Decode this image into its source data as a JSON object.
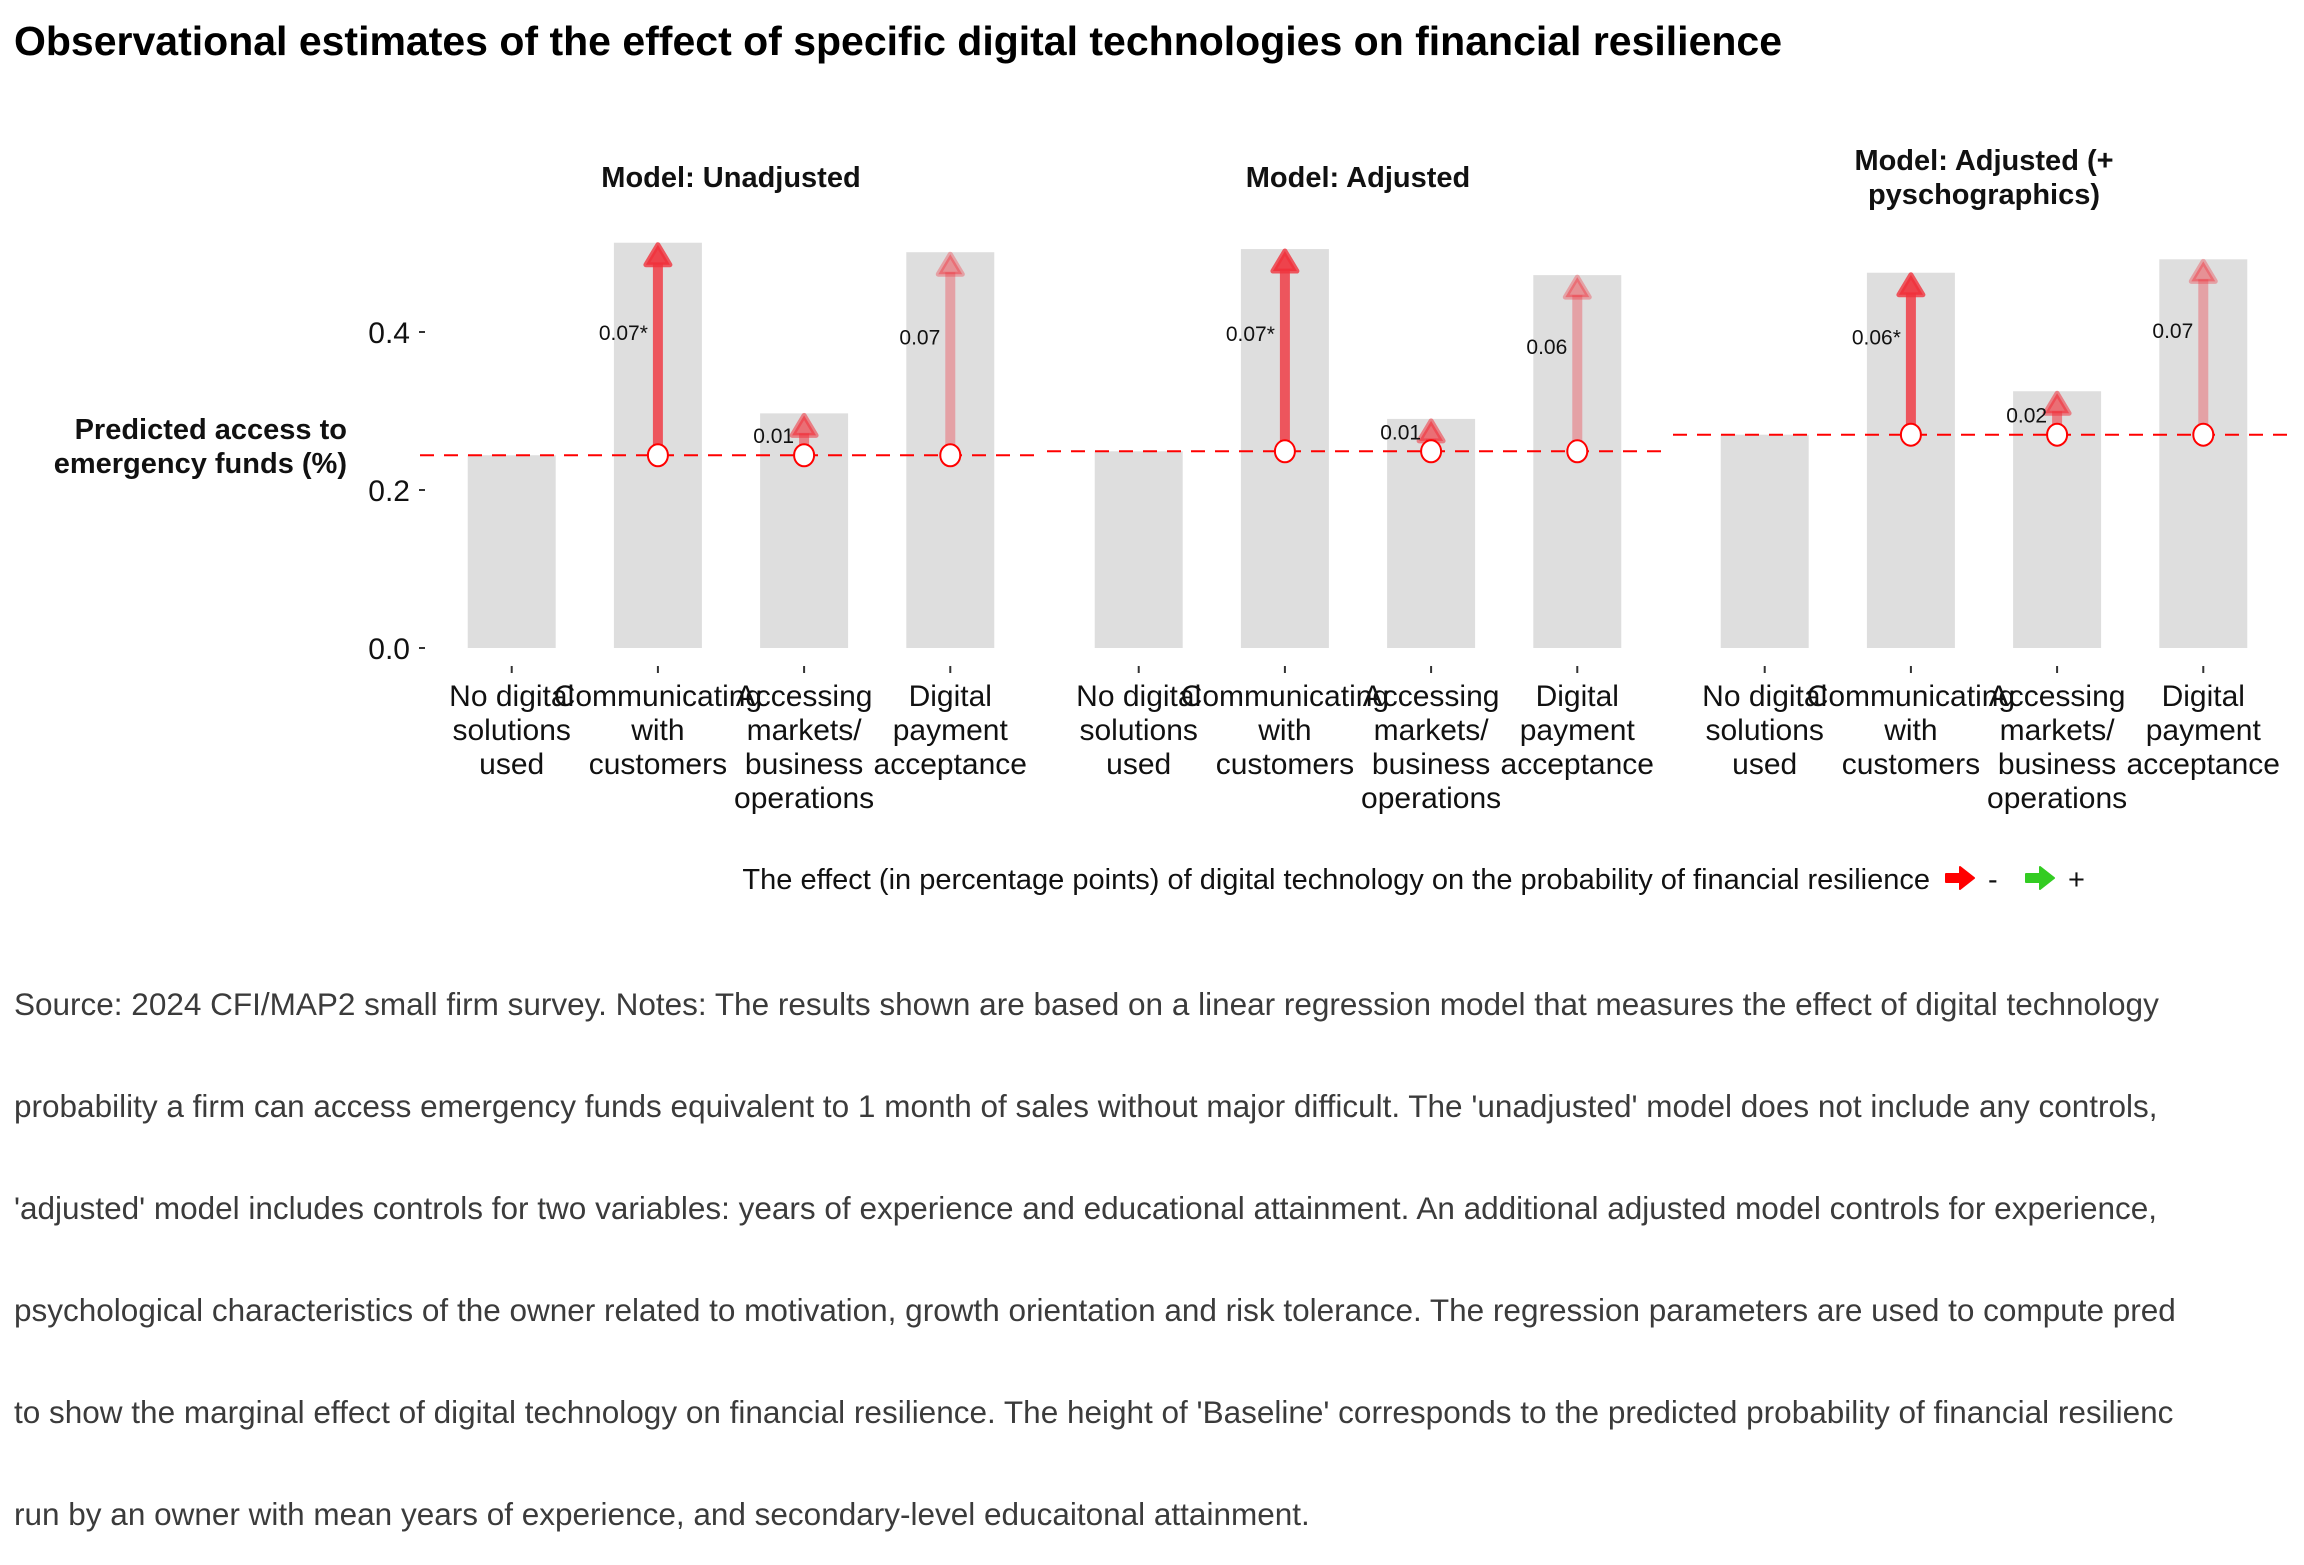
{
  "title": "Observational estimates of the effect of specific digital technologies on financial resilience",
  "chart_data": {
    "type": "bar",
    "title": "Observational estimates of the effect of specific digital technologies on financial resilience",
    "ylabel": "Predicted access to emergency funds (%)",
    "ylabel_lines": [
      "Predicted access to",
      "emergency funds (%)"
    ],
    "xlabel": "",
    "ylim": [
      0,
      0.5
    ],
    "yticks": [
      0.0,
      0.2,
      0.4
    ],
    "ytick_labels": [
      "0.0",
      "0.2",
      "0.4"
    ],
    "grid": false,
    "categories": [
      "No digital solutions used",
      "Communicating with customers",
      "Accessing markets/ business operations",
      "Digital payment acceptance"
    ],
    "category_label_lines": [
      [
        "No digital",
        "solutions",
        "used"
      ],
      [
        "Communicating",
        "with",
        "customers"
      ],
      [
        "Accessing",
        "markets/",
        "business",
        "operations"
      ],
      [
        "Digital",
        "payment",
        "acceptance"
      ]
    ],
    "panels": [
      {
        "title_lines": [
          "Model: Unadjusted"
        ],
        "baseline": 0.244,
        "values": [
          0.244,
          0.513,
          0.297,
          0.501
        ],
        "effects": [
          null,
          0.07,
          0.01,
          0.07
        ],
        "effect_labels": [
          null,
          "0.07*",
          "0.01",
          "0.07"
        ],
        "significant": [
          false,
          true,
          false,
          false
        ]
      },
      {
        "title_lines": [
          "Model: Adjusted"
        ],
        "baseline": 0.249,
        "values": [
          0.249,
          0.505,
          0.29,
          0.472
        ],
        "effects": [
          null,
          0.07,
          0.01,
          0.06
        ],
        "effect_labels": [
          null,
          "0.07*",
          "0.01",
          "0.06"
        ],
        "significant": [
          false,
          true,
          false,
          false
        ]
      },
      {
        "title_lines": [
          "Model: Adjusted (+",
          "pyschographics)"
        ],
        "baseline": 0.27,
        "values": [
          0.27,
          0.475,
          0.325,
          0.492
        ],
        "effects": [
          null,
          0.06,
          0.02,
          0.07
        ],
        "effect_labels": [
          null,
          "0.06*",
          "0.02",
          "0.07"
        ],
        "significant": [
          false,
          true,
          false,
          false
        ]
      }
    ],
    "legend": {
      "title": "The effect (in percentage points) of digital technology on the probability of financial resilience",
      "position": "bottom",
      "entries": [
        {
          "label": "-",
          "color": "#ff0000"
        },
        {
          "label": "+",
          "color": "#33cc22"
        }
      ]
    },
    "colors": {
      "bar": "#dedede",
      "arrow": "#f0323c",
      "baseline_line": "#ff0000",
      "marker_stroke": "#ff0000",
      "marker_fill": "#ffffff"
    }
  },
  "caption_lines": [
    "Source: 2024 CFI/MAP2 small firm survey. Notes: The results shown are based on a linear regression model that measures the effect of digital technology",
    "probability a firm can access emergency funds equivalent to 1 month of sales without major difficult. The 'unadjusted' model does not include any controls,",
    "'adjusted' model includes controls for two variables: years of experience and educational attainment. An additional adjusted model controls for experience,",
    "psychological characteristics of the owner related to motivation, growth orientation and risk tolerance. The regression parameters are used to compute pred",
    "to show the marginal effect of digital technology on financial resilience. The height of 'Baseline' corresponds to the predicted probability of financial resilienc",
    "run by an owner with mean years of experience, and secondary-level educaitonal attainment."
  ]
}
